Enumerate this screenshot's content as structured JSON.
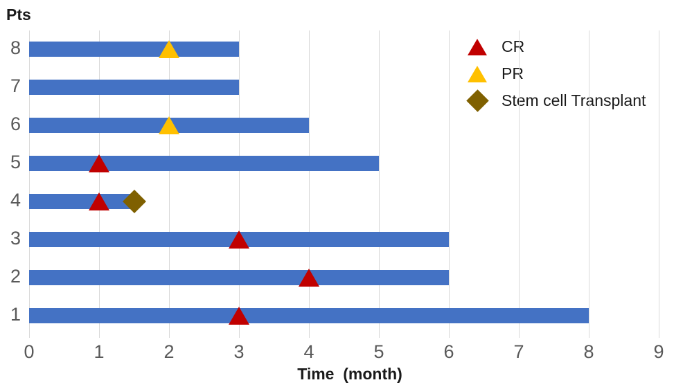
{
  "chart_data": {
    "type": "bar",
    "subtype": "swimmer-plot",
    "orientation": "horizontal",
    "ylabel": "Pts",
    "xlabel": "Time  (month)",
    "xlim": [
      0,
      9
    ],
    "xticks": [
      0,
      1,
      2,
      3,
      4,
      5,
      6,
      7,
      8,
      9
    ],
    "categories": [
      "8",
      "7",
      "6",
      "5",
      "4",
      "3",
      "2",
      "1"
    ],
    "bars": [
      {
        "pt": "8",
        "duration": 3,
        "markers": [
          {
            "type": "PR",
            "x": 2
          }
        ]
      },
      {
        "pt": "7",
        "duration": 3,
        "markers": []
      },
      {
        "pt": "6",
        "duration": 4,
        "markers": [
          {
            "type": "PR",
            "x": 2
          }
        ]
      },
      {
        "pt": "5",
        "duration": 5,
        "markers": [
          {
            "type": "CR",
            "x": 1
          }
        ]
      },
      {
        "pt": "4",
        "duration": 1.5,
        "markers": [
          {
            "type": "CR",
            "x": 1
          },
          {
            "type": "Stem cell Transplant",
            "x": 1.5
          }
        ]
      },
      {
        "pt": "3",
        "duration": 6,
        "markers": [
          {
            "type": "CR",
            "x": 3
          }
        ]
      },
      {
        "pt": "2",
        "duration": 6,
        "markers": [
          {
            "type": "CR",
            "x": 4
          }
        ]
      },
      {
        "pt": "1",
        "duration": 8,
        "markers": [
          {
            "type": "CR",
            "x": 3
          }
        ]
      }
    ],
    "legend": [
      {
        "label": "CR",
        "shape": "triangle",
        "color": "#C00000"
      },
      {
        "label": "PR",
        "shape": "triangle",
        "color": "#FFC000"
      },
      {
        "label": "Stem cell Transplant",
        "shape": "diamond",
        "color": "#7F6000"
      }
    ],
    "legend_position": "top-right",
    "grid": true,
    "colors": {
      "bar": "#4472C4",
      "gridline": "#D9D9D9",
      "tick_label": "#595959",
      "axis_title": "#1A1A1A",
      "legend_text": "#1A1A1A"
    }
  }
}
